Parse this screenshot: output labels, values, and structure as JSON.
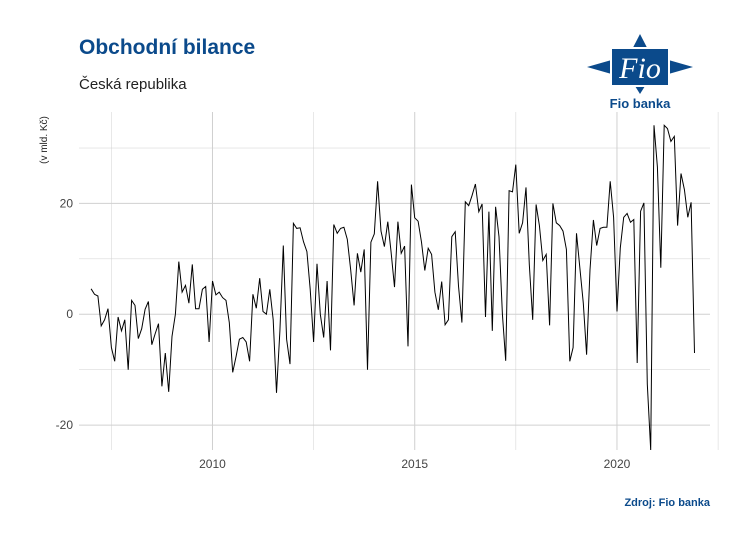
{
  "header": {
    "title": "Obchodní bilance",
    "subtitle": "Česká republika",
    "logo_text": "Fio banka",
    "logo_mark": "Fio",
    "source": "Zdroj: Fio banka"
  },
  "colors": {
    "brand": "#0b4a8b",
    "line": "#000000",
    "grid": "#d0d0d0"
  },
  "chart_data": {
    "type": "line",
    "title": "Obchodní bilance",
    "subtitle": "Česká republika",
    "xlabel": "",
    "ylabel": "(v mld. Kč)",
    "xlim": [
      2006.7,
      2022.3
    ],
    "ylim": [
      -24.5,
      36.5
    ],
    "x_ticks": [
      2010,
      2015,
      2020
    ],
    "x_tick_labels": [
      "2010",
      "2015",
      "2020"
    ],
    "y_ticks": [
      -20,
      0,
      20
    ],
    "y_tick_labels": [
      "-20",
      "0",
      "20"
    ],
    "grid": true,
    "legend": "none",
    "series": [
      {
        "x_start": 2007.0,
        "step": 0.0833333,
        "values": [
          4.6,
          3.6,
          3.3,
          -2.1,
          -1.0,
          1.0,
          -6.0,
          -8.5,
          -0.5,
          -3.0,
          -1.0,
          -10.0,
          2.5,
          1.6,
          -4.4,
          -2.6,
          0.9,
          2.3,
          -5.5,
          -3.5,
          -1.7,
          -13.0,
          -7.0,
          -14.0,
          -4.0,
          0.0,
          9.5,
          4.0,
          5.2,
          2.0,
          9.0,
          1.0,
          1.0,
          4.5,
          5.0,
          -5.0,
          6.0,
          3.5,
          4.0,
          3.0,
          2.5,
          -1.5,
          -10.5,
          -7.6,
          -4.5,
          -4.2,
          -5.0,
          -8.5,
          3.6,
          1.1,
          6.5,
          0.5,
          0.0,
          4.5,
          -1.0,
          -14.2,
          -3.0,
          12.4,
          -4.5,
          -9.0,
          16.4,
          15.5,
          15.6,
          13.1,
          11.3,
          4.5,
          -5.0,
          9.1,
          0.0,
          -4.2,
          6.0,
          -6.5,
          16.2,
          14.6,
          15.5,
          15.7,
          13.5,
          8.0,
          1.6,
          11.0,
          7.6,
          11.7,
          -10.0,
          13.0,
          14.5,
          24.0,
          15.0,
          12.2,
          16.7,
          11.2,
          4.9,
          16.7,
          11.0,
          12.3,
          -5.8,
          23.4,
          17.4,
          16.8,
          13.0,
          7.9,
          11.9,
          10.8,
          4.0,
          0.8,
          5.9,
          -1.9,
          -1.0,
          14.0,
          14.9,
          5.1,
          -1.5,
          20.3,
          19.6,
          21.4,
          23.5,
          18.5,
          19.9,
          -0.5,
          18.5,
          -3.0,
          19.4,
          14.0,
          0.0,
          -8.4,
          22.3,
          22.1,
          27.0,
          14.6,
          16.5,
          22.9,
          9.0,
          -1.0,
          19.8,
          16.0,
          9.7,
          10.8,
          -2.0,
          20.0,
          16.5,
          16.0,
          15.0,
          11.7,
          -8.5,
          -6.0,
          14.6,
          8.3,
          2.0,
          -7.3,
          8.0,
          17.0,
          12.4,
          15.5,
          15.7,
          15.7,
          24.0,
          17.5,
          0.5,
          12.0,
          17.5,
          18.2,
          16.6,
          17.1,
          -8.8,
          18.6,
          20.1,
          -12.6,
          -24.5,
          34.1,
          26.6,
          8.4,
          34.1,
          33.5,
          31.2,
          32.1,
          16.0,
          25.4,
          22.5,
          17.5,
          20.2,
          -7.0
        ]
      }
    ]
  }
}
